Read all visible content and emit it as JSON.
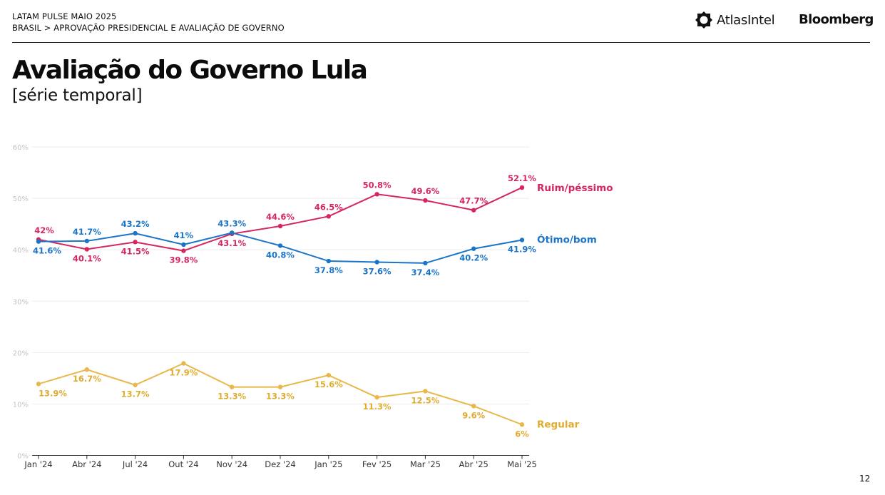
{
  "header": {
    "line1": "LATAM PULSE MAIO 2025",
    "line2": "BRASIL > APROVAÇÃO PRESIDENCIAL E AVALIAÇÃO DE GOVERNO",
    "atlas_logo_text": "AtlasIntel",
    "bloomberg_logo_text": "Bloomberg"
  },
  "page": {
    "title": "Avaliação do Governo Lula",
    "subtitle": "[série temporal]",
    "page_number": "12"
  },
  "chart_data": {
    "type": "line",
    "categories": [
      "Jan '24",
      "Abr '24",
      "Jul '24",
      "Out '24",
      "Nov '24",
      "Dez '24",
      "Jan '25",
      "Fev '25",
      "Mar '25",
      "Abr '25",
      "Mai '25"
    ],
    "ylim": [
      0,
      60
    ],
    "yticks": [
      "0%",
      "10%",
      "20%",
      "30%",
      "40%",
      "50%",
      "60%"
    ],
    "grid": true,
    "legend": "end-of-line labels",
    "series": [
      {
        "name": "Ruim/péssimo",
        "color": "#d6265f",
        "values": [
          42,
          40.1,
          41.5,
          39.8,
          43.1,
          44.6,
          46.5,
          50.8,
          49.6,
          47.7,
          52.1
        ],
        "labels": [
          "42%",
          "40.1%",
          "41.5%",
          "39.8%",
          "43.1%",
          "44.6%",
          "46.5%",
          "50.8%",
          "49.6%",
          "47.7%",
          "52.1%"
        ]
      },
      {
        "name": "Ótimo/bom",
        "color": "#1a74c8",
        "values": [
          41.6,
          41.7,
          43.2,
          41,
          43.3,
          40.8,
          37.8,
          37.6,
          37.4,
          40.2,
          41.9
        ],
        "labels": [
          "41.6%",
          "41.7%",
          "43.2%",
          "41%",
          "43.3%",
          "40.8%",
          "37.8%",
          "37.6%",
          "37.4%",
          "40.2%",
          "41.9%"
        ]
      },
      {
        "name": "Regular",
        "color": "#e8b84a",
        "values": [
          13.9,
          16.7,
          13.7,
          17.9,
          13.3,
          13.3,
          15.6,
          11.3,
          12.5,
          9.6,
          6
        ],
        "labels": [
          "13.9%",
          "16.7%",
          "13.7%",
          "17.9%",
          "13.3%",
          "13.3%",
          "15.6%",
          "11.3%",
          "12.5%",
          "9.6%",
          "6%"
        ]
      }
    ]
  }
}
